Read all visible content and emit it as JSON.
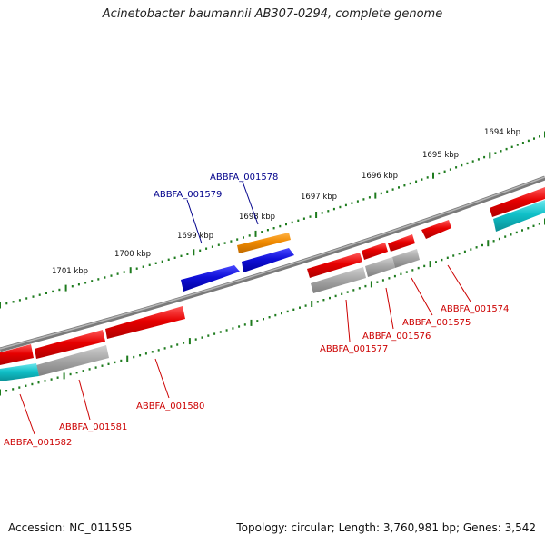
{
  "title": "Acinetobacter baumannii AB307-0294, complete genome",
  "footer": {
    "accession": "Accession: NC_011595",
    "summary": "Topology: circular; Length: 3,760,981 bp; Genes: 3,542"
  },
  "colors": {
    "backbone": "#7a7a7a",
    "ticks": "#1e7b1e",
    "forward_label": "#00008b",
    "reverse_label": "#cc0000",
    "red": "#e60000",
    "blue": "#1010d8",
    "orange": "#f08a00",
    "gray": "#a0a0a0",
    "cyan": "#10c0c8"
  },
  "ticks": {
    "upper": [
      {
        "label": "1694 kbp"
      },
      {
        "label": "1695 kbp"
      },
      {
        "label": "1696 kbp"
      },
      {
        "label": "1697 kbp"
      },
      {
        "label": "1698 kbp"
      },
      {
        "label": "1699 kbp"
      },
      {
        "label": "1700 kbp"
      },
      {
        "label": "1701 kbp"
      }
    ]
  },
  "labels": [
    {
      "text": "ABBFA_001578",
      "strand": "forward"
    },
    {
      "text": "ABBFA_001579",
      "strand": "forward"
    },
    {
      "text": "ABBFA_001574",
      "strand": "reverse"
    },
    {
      "text": "ABBFA_001575",
      "strand": "reverse"
    },
    {
      "text": "ABBFA_001576",
      "strand": "reverse"
    },
    {
      "text": "ABBFA_001577",
      "strand": "reverse"
    },
    {
      "text": "ABBFA_001580",
      "strand": "reverse"
    },
    {
      "text": "ABBFA_001581",
      "strand": "reverse"
    },
    {
      "text": "ABBFA_001582",
      "strand": "reverse"
    }
  ]
}
